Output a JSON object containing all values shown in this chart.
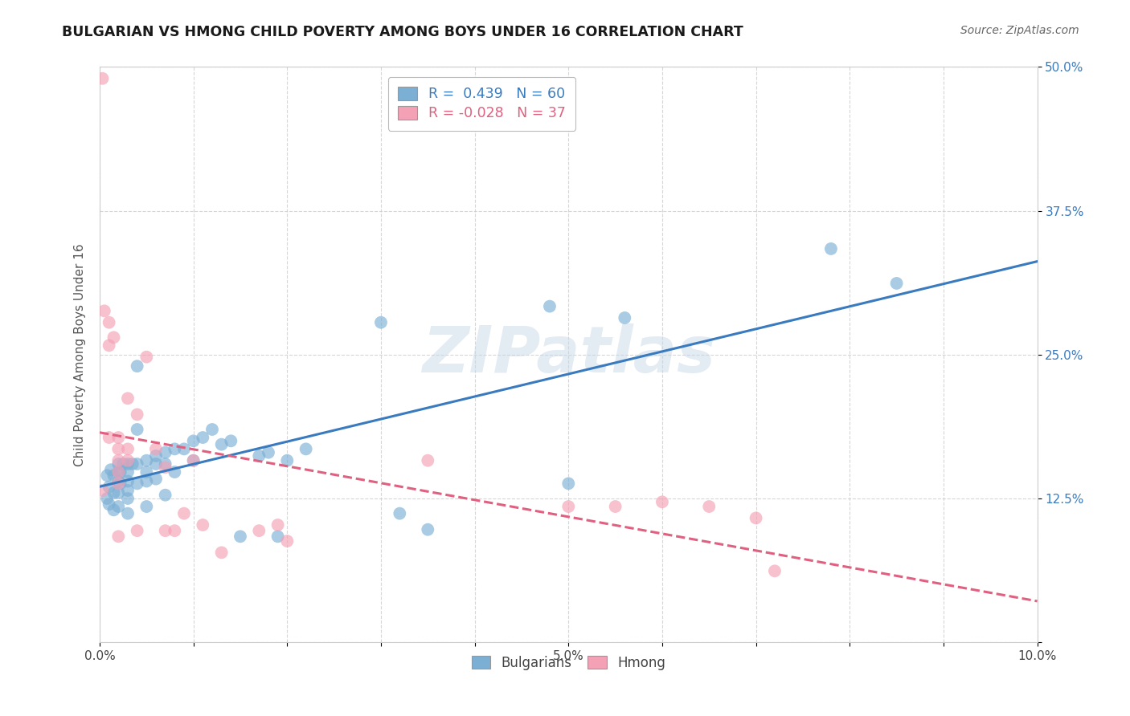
{
  "title": "BULGARIAN VS HMONG CHILD POVERTY AMONG BOYS UNDER 16 CORRELATION CHART",
  "source": "Source: ZipAtlas.com",
  "ylabel": "Child Poverty Among Boys Under 16",
  "xlim": [
    0.0,
    0.1
  ],
  "ylim": [
    0.0,
    0.5
  ],
  "xticks": [
    0.0,
    0.01,
    0.02,
    0.03,
    0.04,
    0.05,
    0.06,
    0.07,
    0.08,
    0.09,
    0.1
  ],
  "xtick_labels": [
    "0.0%",
    "",
    "",
    "",
    "",
    "5.0%",
    "",
    "",
    "",
    "",
    "10.0%"
  ],
  "ytick_values": [
    0.0,
    0.125,
    0.25,
    0.375,
    0.5
  ],
  "ytick_labels": [
    "",
    "12.5%",
    "25.0%",
    "37.5%",
    "50.0%"
  ],
  "legend_line1": "R =  0.439   N = 60",
  "legend_line2": "R = -0.028   N = 37",
  "bulgarian_color": "#7bafd4",
  "hmong_color": "#f4a0b5",
  "trend_bulgarian_color": "#3a7bbf",
  "trend_hmong_color": "#e06080",
  "background_color": "#ffffff",
  "grid_color": "#cccccc",
  "watermark": "ZIPatlas",
  "bulgarian_x": [
    0.0008,
    0.0008,
    0.001,
    0.001,
    0.0012,
    0.0015,
    0.0015,
    0.0015,
    0.002,
    0.002,
    0.002,
    0.002,
    0.002,
    0.0022,
    0.0022,
    0.0025,
    0.003,
    0.003,
    0.003,
    0.003,
    0.003,
    0.003,
    0.0035,
    0.004,
    0.004,
    0.004,
    0.004,
    0.005,
    0.005,
    0.005,
    0.005,
    0.006,
    0.006,
    0.006,
    0.007,
    0.007,
    0.007,
    0.008,
    0.008,
    0.009,
    0.01,
    0.01,
    0.011,
    0.012,
    0.013,
    0.014,
    0.015,
    0.017,
    0.018,
    0.019,
    0.02,
    0.022,
    0.03,
    0.032,
    0.035,
    0.048,
    0.05,
    0.056,
    0.078,
    0.085
  ],
  "bulgarian_y": [
    0.145,
    0.125,
    0.135,
    0.12,
    0.15,
    0.145,
    0.13,
    0.115,
    0.155,
    0.148,
    0.14,
    0.13,
    0.118,
    0.148,
    0.138,
    0.155,
    0.155,
    0.148,
    0.14,
    0.132,
    0.125,
    0.112,
    0.155,
    0.24,
    0.185,
    0.155,
    0.138,
    0.158,
    0.148,
    0.14,
    0.118,
    0.162,
    0.155,
    0.142,
    0.165,
    0.155,
    0.128,
    0.168,
    0.148,
    0.168,
    0.175,
    0.158,
    0.178,
    0.185,
    0.172,
    0.175,
    0.092,
    0.162,
    0.165,
    0.092,
    0.158,
    0.168,
    0.278,
    0.112,
    0.098,
    0.292,
    0.138,
    0.282,
    0.342,
    0.312
  ],
  "hmong_x": [
    0.0003,
    0.0003,
    0.0005,
    0.001,
    0.001,
    0.001,
    0.0015,
    0.002,
    0.002,
    0.002,
    0.002,
    0.002,
    0.002,
    0.003,
    0.003,
    0.003,
    0.004,
    0.004,
    0.005,
    0.006,
    0.007,
    0.007,
    0.008,
    0.009,
    0.01,
    0.011,
    0.013,
    0.017,
    0.019,
    0.02,
    0.035,
    0.05,
    0.055,
    0.06,
    0.065,
    0.07,
    0.072
  ],
  "hmong_y": [
    0.49,
    0.132,
    0.288,
    0.278,
    0.258,
    0.178,
    0.265,
    0.178,
    0.168,
    0.158,
    0.148,
    0.138,
    0.092,
    0.212,
    0.168,
    0.158,
    0.198,
    0.097,
    0.248,
    0.168,
    0.152,
    0.097,
    0.097,
    0.112,
    0.158,
    0.102,
    0.078,
    0.097,
    0.102,
    0.088,
    0.158,
    0.118,
    0.118,
    0.122,
    0.118,
    0.108,
    0.062
  ]
}
